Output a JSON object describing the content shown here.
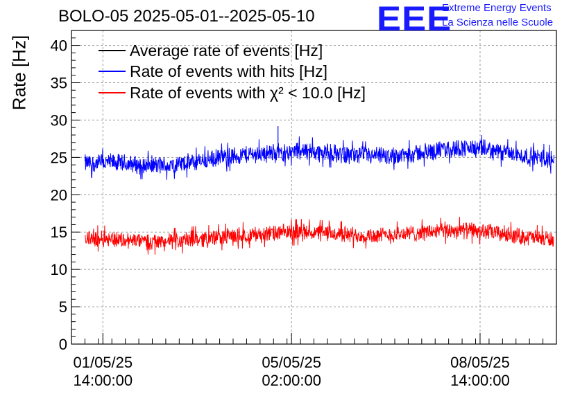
{
  "header": {
    "title": "BOLO-05 2025-05-01--2025-05-10",
    "logo_text": "EEE",
    "logo_line1": "Extreme Energy Events",
    "logo_line2": "La Scienza nelle Scuole"
  },
  "colors": {
    "average": "#000000",
    "hits": "#0000ff",
    "chi2": "#ff0000",
    "grid": "#999999",
    "logo": "#1a1aff"
  },
  "chart_data": {
    "type": "line",
    "title": "BOLO-05 2025-05-01--2025-05-10",
    "ylabel": "Rate [Hz]",
    "xlabel": "",
    "ylim": [
      0,
      42
    ],
    "yticks": [
      0,
      5,
      10,
      15,
      20,
      25,
      30,
      35,
      40
    ],
    "ytick_labels": [
      "0",
      "5",
      "10",
      "15",
      "20",
      "25",
      "30",
      "35",
      "40"
    ],
    "xlim": [
      "2025-05-01T00:00",
      "2025-05-10T00:00"
    ],
    "xticks": [
      {
        "x": "2025-05-01T14:00",
        "date": "01/05/25",
        "time": "14:00:00"
      },
      {
        "x": "2025-05-05T02:00",
        "date": "05/05/25",
        "time": "02:00:00"
      },
      {
        "x": "2025-05-08T14:00",
        "date": "08/05/25",
        "time": "14:00:00"
      }
    ],
    "grid": true,
    "legend_position": "top-left",
    "series": [
      {
        "name": "Average rate of events [Hz]",
        "x": [],
        "values": []
      },
      {
        "name": "Rate of events with hits [Hz]",
        "x": [
          "2025-05-01T06:00",
          "2025-05-01T18:00",
          "2025-05-02T06:00",
          "2025-05-02T18:00",
          "2025-05-03T06:00",
          "2025-05-03T18:00",
          "2025-05-04T06:00",
          "2025-05-04T18:00",
          "2025-05-05T06:00",
          "2025-05-05T18:00",
          "2025-05-06T06:00",
          "2025-05-06T18:00",
          "2025-05-07T06:00",
          "2025-05-07T18:00",
          "2025-05-08T06:00",
          "2025-05-08T18:00",
          "2025-05-09T06:00",
          "2025-05-09T18:00",
          "2025-05-09T23:00"
        ],
        "values": [
          24.2,
          24.3,
          24.0,
          23.9,
          24.3,
          24.9,
          25.4,
          25.6,
          25.9,
          25.6,
          25.3,
          25.1,
          25.4,
          25.9,
          26.3,
          26.0,
          25.3,
          24.9,
          24.7
        ],
        "fluctuation": 1.2,
        "spike": {
          "x": "2025-05-04T20:00",
          "value": 29.2
        }
      },
      {
        "name": "Rate of events with χ² < 10.0 [Hz]",
        "x": [
          "2025-05-01T06:00",
          "2025-05-01T18:00",
          "2025-05-02T06:00",
          "2025-05-02T18:00",
          "2025-05-03T06:00",
          "2025-05-03T18:00",
          "2025-05-04T06:00",
          "2025-05-04T18:00",
          "2025-05-05T06:00",
          "2025-05-05T18:00",
          "2025-05-06T06:00",
          "2025-05-06T18:00",
          "2025-05-07T06:00",
          "2025-05-07T18:00",
          "2025-05-08T06:00",
          "2025-05-08T18:00",
          "2025-05-09T06:00",
          "2025-05-09T18:00",
          "2025-05-09T23:00"
        ],
        "values": [
          14.2,
          14.1,
          13.8,
          13.7,
          14.0,
          14.3,
          14.6,
          14.8,
          15.0,
          14.8,
          14.6,
          14.5,
          14.8,
          15.1,
          15.3,
          15.0,
          14.5,
          14.1,
          14.0
        ],
        "fluctuation": 1.1
      }
    ],
    "legend": [
      {
        "label": "Average rate of events [Hz]",
        "color": "#000000"
      },
      {
        "label": "Rate of events with hits [Hz]",
        "color": "#0000ff"
      },
      {
        "label": "Rate of events with χ² < 10.0 [Hz]",
        "color": "#ff0000"
      }
    ]
  }
}
